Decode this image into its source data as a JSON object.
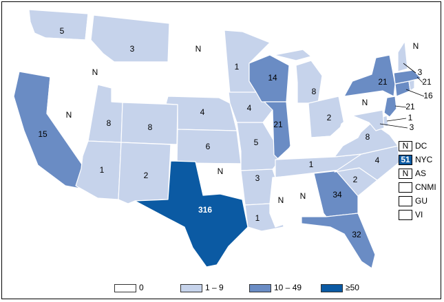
{
  "colors": {
    "c0": "#ffffff",
    "c1": "#c6d3eb",
    "c2": "#6a8cc4",
    "c3": "#0b5aa3",
    "outline": "#222222"
  },
  "states": [
    {
      "name": "WA",
      "bin": 1,
      "label": "5"
    },
    {
      "name": "OR",
      "bin": 0,
      "label": ""
    },
    {
      "name": "CA",
      "bin": 2,
      "label": "15"
    },
    {
      "name": "NV",
      "bin": 0,
      "label": "N"
    },
    {
      "name": "ID",
      "bin": 0,
      "label": "N"
    },
    {
      "name": "MT",
      "bin": 1,
      "label": "3"
    },
    {
      "name": "WY",
      "bin": 0,
      "label": ""
    },
    {
      "name": "UT",
      "bin": 1,
      "label": "8"
    },
    {
      "name": "CO",
      "bin": 1,
      "label": "8"
    },
    {
      "name": "AZ",
      "bin": 1,
      "label": "1"
    },
    {
      "name": "NM",
      "bin": 1,
      "label": "2"
    },
    {
      "name": "ND",
      "bin": 0,
      "label": "N"
    },
    {
      "name": "SD",
      "bin": 0,
      "label": ""
    },
    {
      "name": "NE",
      "bin": 1,
      "label": "4"
    },
    {
      "name": "KS",
      "bin": 1,
      "label": "6"
    },
    {
      "name": "OK",
      "bin": 0,
      "label": "N"
    },
    {
      "name": "TX",
      "bin": 3,
      "label": "316"
    },
    {
      "name": "MN",
      "bin": 1,
      "label": "1"
    },
    {
      "name": "IA",
      "bin": 1,
      "label": "4"
    },
    {
      "name": "MO",
      "bin": 1,
      "label": "5"
    },
    {
      "name": "AR",
      "bin": 1,
      "label": "3"
    },
    {
      "name": "LA",
      "bin": 1,
      "label": "1"
    },
    {
      "name": "WI",
      "bin": 2,
      "label": "14"
    },
    {
      "name": "IL",
      "bin": 2,
      "label": "21"
    },
    {
      "name": "MI",
      "bin": 1,
      "label": "8"
    },
    {
      "name": "IN",
      "bin": 0,
      "label": ""
    },
    {
      "name": "OH",
      "bin": 1,
      "label": "2"
    },
    {
      "name": "KY",
      "bin": 0,
      "label": ""
    },
    {
      "name": "TN",
      "bin": 1,
      "label": "1"
    },
    {
      "name": "MS",
      "bin": 0,
      "label": "N"
    },
    {
      "name": "AL",
      "bin": 0,
      "label": "N"
    },
    {
      "name": "GA",
      "bin": 2,
      "label": "34"
    },
    {
      "name": "FL",
      "bin": 2,
      "label": "32"
    },
    {
      "name": "SC",
      "bin": 1,
      "label": "2"
    },
    {
      "name": "NC",
      "bin": 1,
      "label": "4"
    },
    {
      "name": "VA",
      "bin": 1,
      "label": "8"
    },
    {
      "name": "WV",
      "bin": 0,
      "label": ""
    },
    {
      "name": "PA",
      "bin": 0,
      "label": "N"
    },
    {
      "name": "NY",
      "bin": 2,
      "label": "21"
    },
    {
      "name": "NJ",
      "bin": 2,
      "label": "21"
    },
    {
      "name": "DE",
      "bin": 1,
      "label": "1"
    },
    {
      "name": "MD",
      "bin": 1,
      "label": "3"
    },
    {
      "name": "CT",
      "bin": 2,
      "label": "16"
    },
    {
      "name": "RI",
      "bin": 1,
      "label": ""
    },
    {
      "name": "MA",
      "bin": 2,
      "label": "21"
    },
    {
      "name": "VT",
      "bin": 0,
      "label": ""
    },
    {
      "name": "NH",
      "bin": 1,
      "label": "3"
    },
    {
      "name": "ME",
      "bin": 0,
      "label": "N"
    },
    {
      "name": "AK",
      "bin": 0,
      "label": ""
    },
    {
      "name": "HI",
      "bin": 0,
      "label": ""
    },
    {
      "name": "PR",
      "bin": 0,
      "label": ""
    }
  ],
  "territories": [
    {
      "code": "DC",
      "value": "N",
      "bin": 0
    },
    {
      "code": "NYC",
      "value": "51",
      "bin": 3
    },
    {
      "code": "AS",
      "value": "N",
      "bin": 0
    },
    {
      "code": "CNMI",
      "value": "",
      "bin": 0
    },
    {
      "code": "GU",
      "value": "",
      "bin": 0
    },
    {
      "code": "VI",
      "value": "",
      "bin": 0
    }
  ],
  "legend": [
    {
      "label": "0",
      "bin": 0
    },
    {
      "label": "1 – 9",
      "bin": 1
    },
    {
      "label": "10 – 49",
      "bin": 2
    },
    {
      "label": "≥50",
      "bin": 3
    }
  ]
}
